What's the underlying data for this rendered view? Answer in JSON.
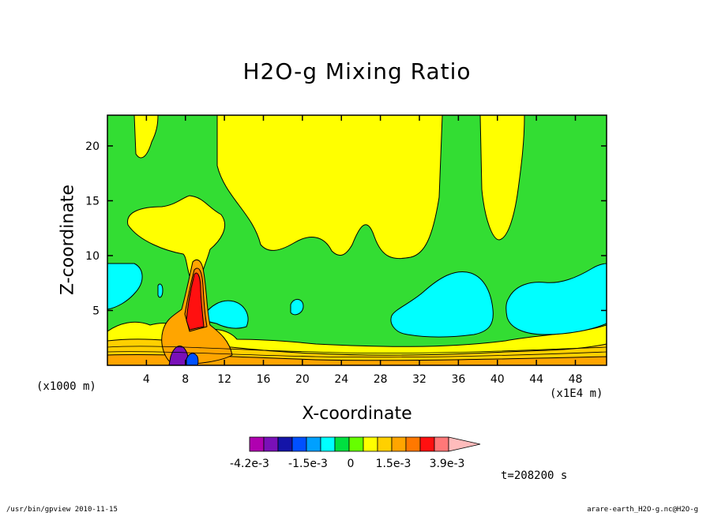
{
  "chart_data": {
    "type": "heatmap",
    "title": "H2O-g Mixing Ratio",
    "xlabel": "X-coordinate",
    "ylabel": "Z-coordinate",
    "x_unit_note": "(x1000 m)",
    "y_unit_note": "(x1E4 m)",
    "x_ticks": [
      4,
      8,
      12,
      16,
      20,
      24,
      28,
      32,
      36,
      40,
      44,
      48
    ],
    "y_ticks": [
      5,
      10,
      15,
      20
    ],
    "xlim": [
      0,
      51.2
    ],
    "ylim": [
      0,
      22.8
    ],
    "colorbar": {
      "levels": 13,
      "colors": [
        "#b000b0",
        "#7a10b8",
        "#1414a8",
        "#0050ff",
        "#00a0ff",
        "#00ffff",
        "#00e040",
        "#66ff00",
        "#ffff00",
        "#ffd000",
        "#ffa500",
        "#ff7800",
        "#ff1010",
        "#ff7878",
        "#ffbcbc"
      ],
      "labels": [
        "-4.2e-3",
        "-1.5e-3",
        "0",
        "1.5e-3",
        "3.9e-3"
      ],
      "label_index": [
        0,
        3,
        5,
        7,
        10
      ]
    },
    "time_label": "t=208200 s",
    "background_color": "#33dd33"
  },
  "footer": {
    "left": "/usr/bin/gpview   2010-11-15",
    "right": "arare-earth_H2O-g.nc@H2O-g"
  }
}
